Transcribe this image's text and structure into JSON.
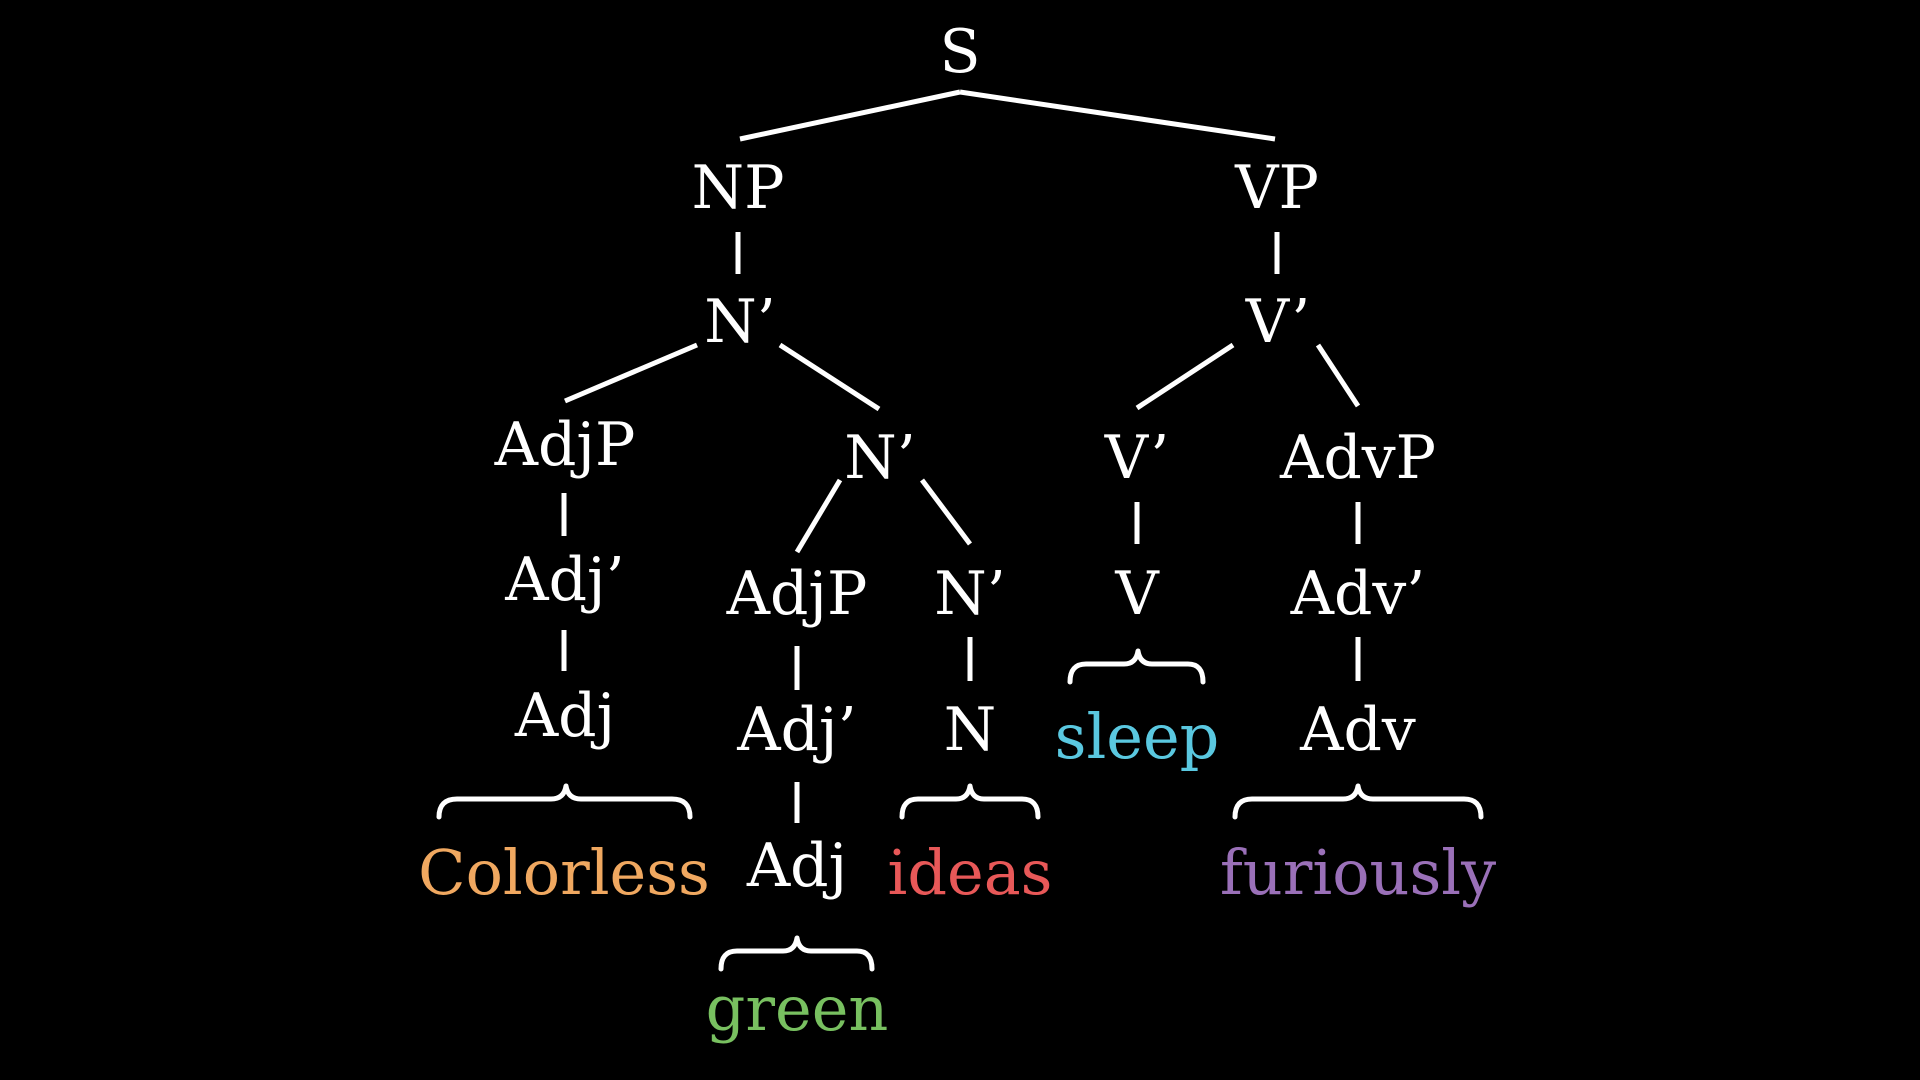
{
  "nodes": {
    "s": "S",
    "np": "NP",
    "vp": "VP",
    "nbar1": "N’",
    "vbar1": "V’",
    "adjp1": "AdjP",
    "nbar2": "N’",
    "vbar2": "V’",
    "advp": "AdvP",
    "adjbar1": "Adj’",
    "adjp2": "AdjP",
    "nbar3": "N’",
    "v": "V",
    "advbar": "Adv’",
    "adj1": "Adj",
    "adjbar2": "Adj’",
    "n": "N",
    "adv": "Adv",
    "adj2": "Adj"
  },
  "words": {
    "colorless": {
      "text": "Colorless",
      "color": "#f0a860"
    },
    "green": {
      "text": "green",
      "color": "#78c060"
    },
    "ideas": {
      "text": "ideas",
      "color": "#e85858"
    },
    "sleep": {
      "text": "sleep",
      "color": "#5ac8e0"
    },
    "furiously": {
      "text": "furiously",
      "color": "#9a70b8"
    }
  },
  "colors": {
    "background": "#000000",
    "lines": "#ffffff",
    "labels": "#ffffff"
  }
}
